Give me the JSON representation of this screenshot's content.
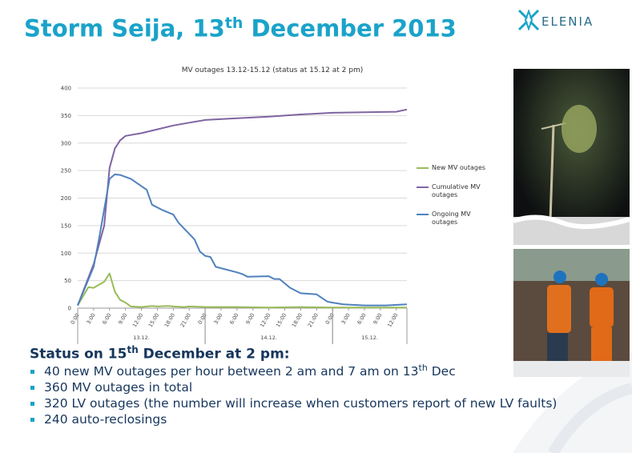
{
  "slide": {
    "title": {
      "main": "Storm Seija, 13",
      "sup": "th",
      "rest": " December 2013"
    },
    "logo": "ELENIA",
    "status": {
      "main": "Status on 15",
      "sup": "th",
      "rest": " December at 2 pm:"
    },
    "bullets": [
      {
        "main": "40 new MV outages per hour between 2 am and 7 am on 13",
        "sup": "th",
        "rest": " Dec"
      },
      {
        "main": "360 MV outages in total"
      },
      {
        "main": "320 LV outages (the number will increase when customers report of new LV faults)"
      },
      {
        "main": "240 auto-reclosings"
      }
    ]
  },
  "chart_data": {
    "type": "line",
    "title": "MV outages 13.12-15.12 (status at 15.12 at 2 pm)",
    "xlim": [
      0,
      62
    ],
    "ylim": [
      0,
      400
    ],
    "yticks": [
      0,
      50,
      100,
      150,
      200,
      250,
      300,
      350,
      400
    ],
    "grid": true,
    "legend": "right",
    "xticks": [
      {
        "value": 0,
        "label": "0:00"
      },
      {
        "value": 3,
        "label": "3:00"
      },
      {
        "value": 6,
        "label": "6:00"
      },
      {
        "value": 9,
        "label": "9:00"
      },
      {
        "value": 12,
        "label": "12:00"
      },
      {
        "value": 15,
        "label": "15:00"
      },
      {
        "value": 18,
        "label": "18:00"
      },
      {
        "value": 21,
        "label": "21:00"
      },
      {
        "value": 24,
        "label": "0:00"
      },
      {
        "value": 27,
        "label": "3:00"
      },
      {
        "value": 30,
        "label": "6:00"
      },
      {
        "value": 33,
        "label": "9:00"
      },
      {
        "value": 36,
        "label": "12:00"
      },
      {
        "value": 39,
        "label": "15:00"
      },
      {
        "value": 42,
        "label": "18:00"
      },
      {
        "value": 45,
        "label": "21:00"
      },
      {
        "value": 48,
        "label": "0:00"
      },
      {
        "value": 51,
        "label": "3:00"
      },
      {
        "value": 54,
        "label": "6:00"
      },
      {
        "value": 57,
        "label": "9:00"
      },
      {
        "value": 60,
        "label": "12:00"
      }
    ],
    "x_groups": [
      {
        "label": "13.12.",
        "range": [
          0,
          24
        ]
      },
      {
        "label": "14.12.",
        "range": [
          24,
          48
        ]
      },
      {
        "label": "15.12.",
        "range": [
          48,
          62
        ]
      }
    ],
    "series": [
      {
        "name": "New MV outages",
        "color": "#9bbb59",
        "x": [
          0,
          2,
          3,
          5,
          6,
          7,
          8,
          9,
          10,
          12,
          14,
          15,
          17,
          18,
          20,
          21,
          24,
          30,
          36,
          42,
          48,
          54,
          60,
          62
        ],
        "values": [
          5,
          38,
          37,
          48,
          63,
          30,
          15,
          10,
          3,
          2,
          4,
          3,
          4,
          3,
          2,
          3,
          2,
          2,
          1,
          2,
          1,
          1,
          1,
          1
        ]
      },
      {
        "name": "Cumulative MV outages",
        "color": "#8064a2",
        "x": [
          0,
          3,
          5,
          6,
          7,
          8,
          9,
          12,
          15,
          18,
          21,
          24,
          30,
          36,
          42,
          48,
          54,
          60,
          62
        ],
        "values": [
          5,
          80,
          150,
          255,
          290,
          305,
          313,
          318,
          325,
          332,
          337,
          342,
          345,
          348,
          352,
          355,
          356,
          357,
          361
        ]
      },
      {
        "name": "Ongoing MV outages",
        "color": "#4f81bd",
        "x": [
          0,
          3,
          4,
          6,
          7,
          8,
          10,
          13,
          14,
          16,
          18,
          19,
          22,
          23,
          24,
          25,
          26,
          30,
          31,
          32,
          36,
          37,
          38,
          40,
          42,
          45,
          47,
          48,
          50,
          54,
          58,
          62
        ],
        "values": [
          5,
          75,
          125,
          235,
          243,
          242,
          235,
          215,
          188,
          178,
          170,
          155,
          125,
          103,
          95,
          93,
          75,
          65,
          62,
          57,
          58,
          53,
          53,
          37,
          27,
          25,
          12,
          10,
          7,
          5,
          5,
          7
        ]
      }
    ]
  }
}
